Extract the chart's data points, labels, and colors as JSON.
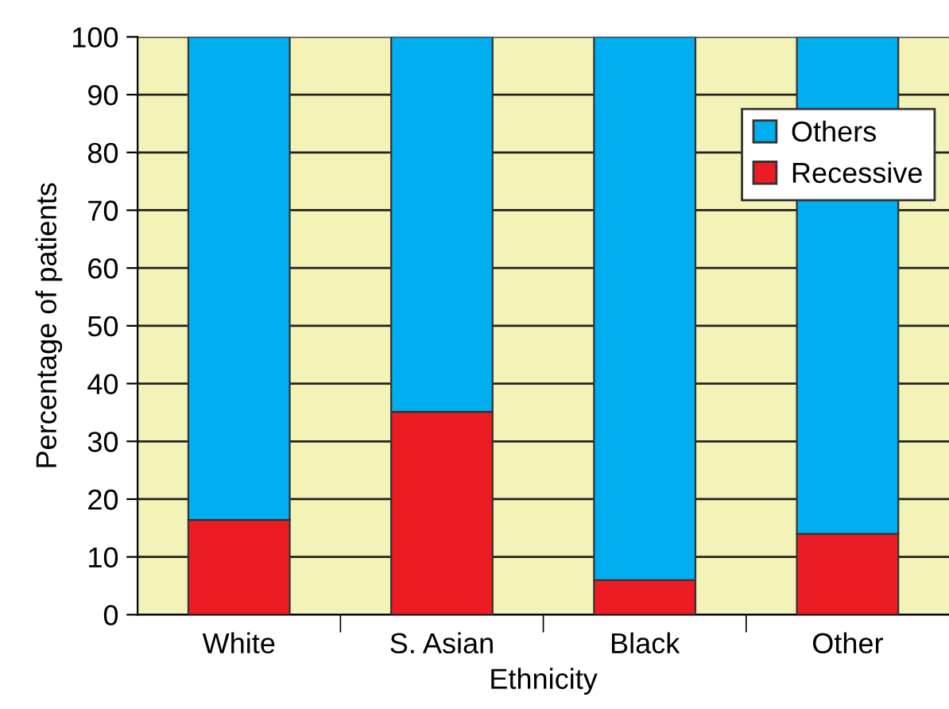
{
  "chart_data": {
    "type": "bar",
    "stacked": true,
    "xlabel": "Ethnicity",
    "ylabel": "Percentage of patients",
    "categories": [
      "White",
      "S. Asian",
      "Black",
      "Other"
    ],
    "series": [
      {
        "name": "Recessive",
        "color": "#ed1c24",
        "values": [
          16.4,
          35.1,
          6.0,
          14.0
        ]
      },
      {
        "name": "Others",
        "color": "#00aeef",
        "values": [
          83.6,
          64.9,
          94.0,
          86.0
        ]
      }
    ],
    "ylim": [
      0,
      100
    ],
    "yticks": [
      0,
      10,
      20,
      30,
      40,
      50,
      60,
      70,
      80,
      90,
      100
    ],
    "grid": "y",
    "legend": "top right"
  }
}
